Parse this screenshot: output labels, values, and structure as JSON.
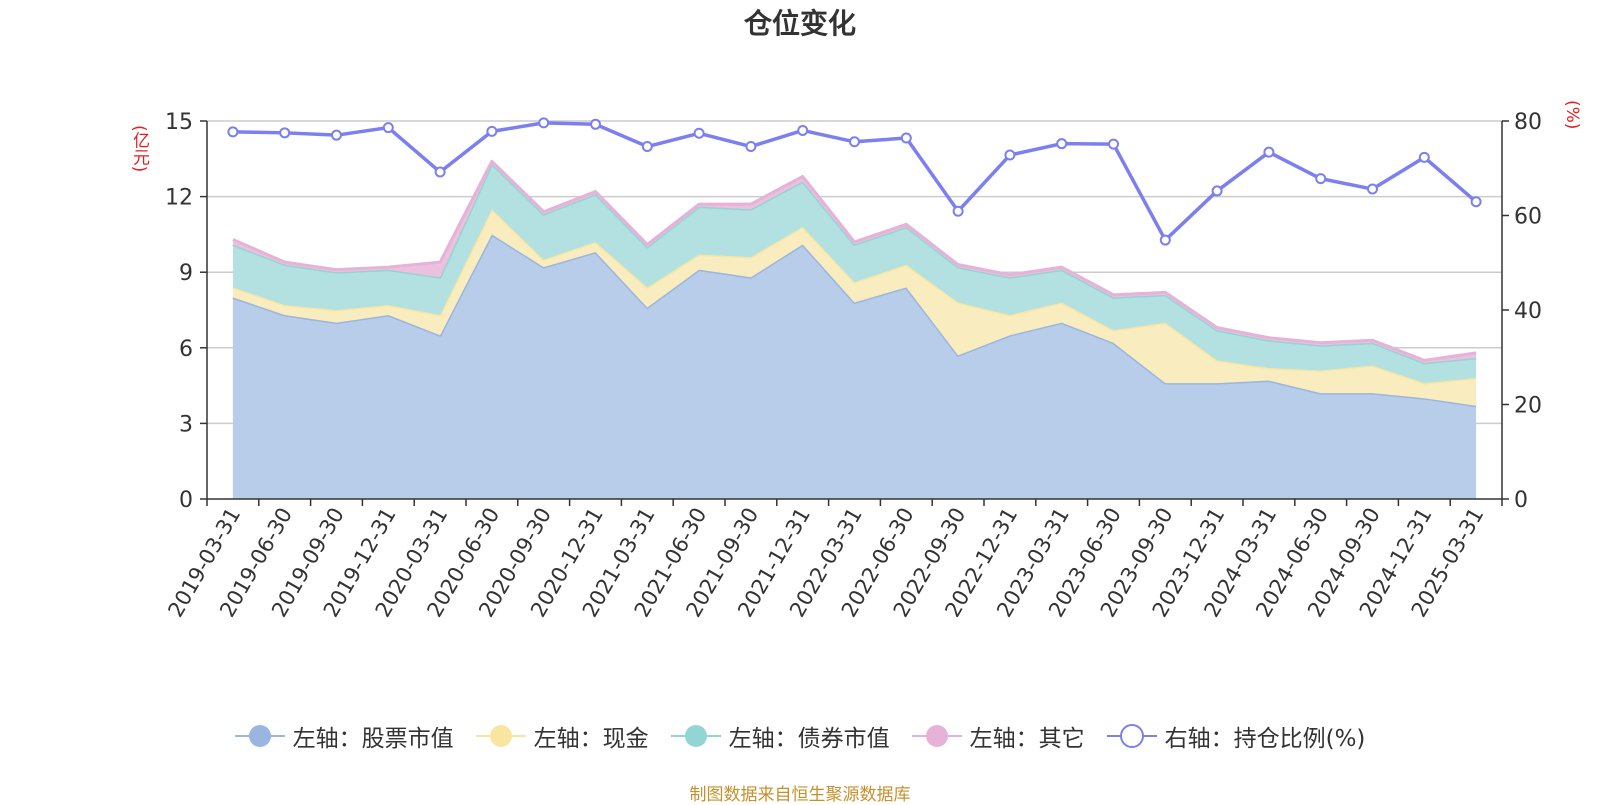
{
  "chart_data": {
    "type": "area",
    "title": "仓位变化",
    "left_unit": "(亿元)",
    "right_unit": "(%)",
    "x": [
      "2019-03-31",
      "2019-06-30",
      "2019-09-30",
      "2019-12-31",
      "2020-03-31",
      "2020-06-30",
      "2020-09-30",
      "2020-12-31",
      "2021-03-31",
      "2021-06-30",
      "2021-09-30",
      "2021-12-31",
      "2022-03-31",
      "2022-06-30",
      "2022-09-30",
      "2022-12-31",
      "2023-03-31",
      "2023-06-30",
      "2023-09-30",
      "2023-12-31",
      "2024-03-31",
      "2024-06-30",
      "2024-09-30",
      "2024-12-31",
      "2025-03-31"
    ],
    "left_axis": {
      "ylim": [
        0,
        15
      ],
      "ticks": [
        "0",
        "3",
        "6",
        "9",
        "12",
        "15"
      ]
    },
    "right_axis": {
      "ylim": [
        0,
        80
      ],
      "ticks": [
        "0",
        "20",
        "40",
        "60",
        "80"
      ]
    },
    "stacked": true,
    "grid": true,
    "legend_position": "bottom",
    "series": [
      {
        "name": "左轴：股票市值",
        "axis": "left",
        "kind": "area",
        "color": "#9ab5e0",
        "fill": "#b8cdea",
        "values": [
          8.0,
          7.3,
          7.0,
          7.3,
          6.5,
          10.5,
          9.2,
          9.8,
          7.6,
          9.1,
          8.8,
          10.1,
          7.8,
          8.4,
          5.7,
          6.5,
          7.0,
          6.2,
          4.6,
          4.6,
          4.7,
          4.2,
          4.2,
          4.0,
          3.7
        ]
      },
      {
        "name": "左轴：现金",
        "axis": "left",
        "kind": "area",
        "color": "#f8e6a0",
        "fill": "#f9edc0",
        "values": [
          0.4,
          0.4,
          0.5,
          0.4,
          0.8,
          1.0,
          0.3,
          0.4,
          0.8,
          0.6,
          0.8,
          0.7,
          0.8,
          0.9,
          2.1,
          0.8,
          0.8,
          0.5,
          2.4,
          0.9,
          0.5,
          0.9,
          1.1,
          0.6,
          1.1
        ]
      },
      {
        "name": "左轴：债券市值",
        "axis": "left",
        "kind": "area",
        "color": "#93d4d4",
        "fill": "#b3e0e0",
        "values": [
          1.7,
          1.6,
          1.5,
          1.4,
          1.5,
          1.8,
          1.8,
          1.9,
          1.6,
          1.9,
          1.9,
          1.8,
          1.5,
          1.5,
          1.4,
          1.5,
          1.3,
          1.3,
          1.1,
          1.2,
          1.1,
          1.0,
          0.9,
          0.8,
          0.8
        ]
      },
      {
        "name": "左轴：其它",
        "axis": "left",
        "kind": "area",
        "color": "#e6b2d8",
        "fill": "#ecc0df",
        "values": [
          0.2,
          0.1,
          0.1,
          0.1,
          0.6,
          0.1,
          0.1,
          0.1,
          0.1,
          0.1,
          0.2,
          0.2,
          0.1,
          0.1,
          0.1,
          0.1,
          0.1,
          0.1,
          0.1,
          0.1,
          0.1,
          0.1,
          0.1,
          0.1,
          0.2
        ]
      },
      {
        "name": "右轴：持仓比例(%)",
        "axis": "right",
        "kind": "line",
        "color": "#7b7ff0",
        "values": [
          77.7,
          77.5,
          77.0,
          78.6,
          69.2,
          77.8,
          79.6,
          79.3,
          74.6,
          77.4,
          74.6,
          78.0,
          75.6,
          76.4,
          60.9,
          72.8,
          75.2,
          75.1,
          54.8,
          65.2,
          73.4,
          67.8,
          65.6,
          72.3,
          62.9
        ]
      }
    ],
    "source_note": "制图数据来自恒生聚源数据库"
  }
}
